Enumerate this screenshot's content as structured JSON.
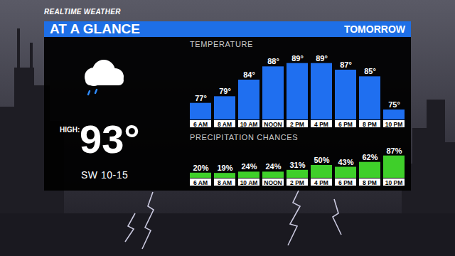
{
  "header": {
    "brand": "REALTIME WEATHER",
    "title": "AT A GLANCE",
    "period": "TOMORROW"
  },
  "summary": {
    "high_label": "HIGH:",
    "high": "93°",
    "wind": "SW 10-15"
  },
  "chart_data": [
    {
      "type": "bar",
      "title": "TEMPERATURE",
      "categories": [
        "6 AM",
        "8 AM",
        "10 AM",
        "NOON",
        "2 PM",
        "4 PM",
        "6 PM",
        "8 PM",
        "10 PM"
      ],
      "values": [
        77,
        79,
        84,
        88,
        89,
        89,
        87,
        85,
        75
      ],
      "value_labels": [
        "77°",
        "79°",
        "84°",
        "88°",
        "89°",
        "89°",
        "87°",
        "85°",
        "75°"
      ],
      "color": "#1f6ff0",
      "ylim": [
        72,
        90
      ],
      "data_labels": true,
      "tick_labels": "x"
    },
    {
      "type": "bar",
      "title": "PRECIPITATION CHANCES",
      "categories": [
        "6 AM",
        "8 AM",
        "10 AM",
        "NOON",
        "2 PM",
        "4 PM",
        "6 PM",
        "8 PM",
        "10 PM"
      ],
      "values": [
        20,
        19,
        24,
        24,
        31,
        50,
        43,
        62,
        87
      ],
      "value_labels": [
        "20%",
        "19%",
        "24%",
        "24%",
        "31%",
        "50%",
        "43%",
        "62%",
        "87%"
      ],
      "color": "#3fcf2a",
      "ylim": [
        0,
        100
      ],
      "data_labels": true,
      "tick_labels": "x"
    }
  ]
}
